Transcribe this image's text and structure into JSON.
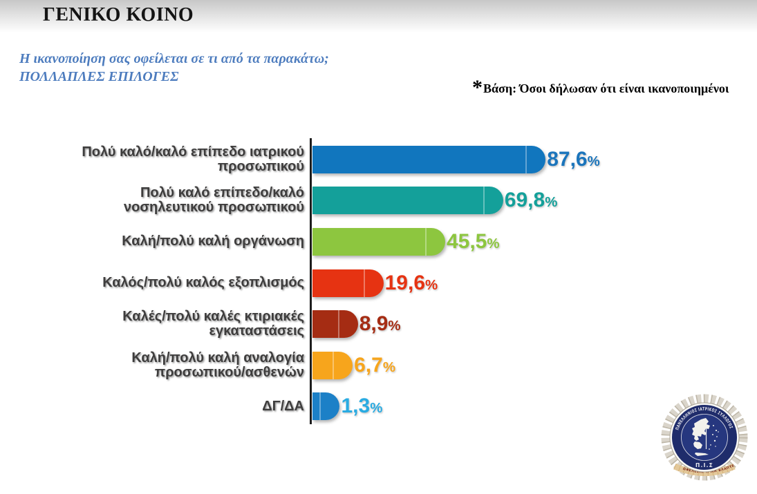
{
  "header": {
    "title": "ΓΕΝΙΚΟ ΚΟΙΝΟ"
  },
  "question": {
    "line1": "Η ικανοποίηση σας οφείλεται σε τι από τα παρακάτω;",
    "line2": "ΠΟΛΛΑΠΛΕΣ ΕΠΙΛΟΓΕΣ"
  },
  "note": {
    "asterisk": "*",
    "text": "Βάση: Όσοι δήλωσαν ότι είναι ικανοποιημένοι"
  },
  "chart_data": {
    "type": "bar",
    "orientation": "horizontal",
    "title": "",
    "xlabel": "",
    "ylabel": "",
    "xlim": [
      0,
      100
    ],
    "grid": false,
    "legend": "none",
    "value_label_position": "outside-end",
    "categories": [
      "Πολύ καλό/καλό επίπεδο ιατρικού προσωπικού",
      "Πολύ καλό επίπεδο/καλό νοσηλευτικού προσωπικού",
      "Καλή/πολύ καλή οργάνωση",
      "Καλός/πολύ καλός εξοπλισμός",
      "Καλές/πολύ καλές κτιριακές εγκαταστάσεις",
      "Καλή/πολύ καλή αναλογία προσωπικού/ασθενών",
      "ΔΓ/ΔΑ"
    ],
    "category_lines": [
      [
        "Πολύ καλό/καλό επίπεδο ιατρικού",
        "προσωπικού"
      ],
      [
        "Πολύ καλό επίπεδο/καλό",
        "νοσηλευτικού προσωπικού"
      ],
      [
        "Καλή/πολύ καλή οργάνωση"
      ],
      [
        "Καλός/πολύ καλός εξοπλισμός"
      ],
      [
        "Καλές/πολύ καλές κτιριακές",
        "εγκαταστάσεις"
      ],
      [
        "Καλή/πολύ καλή αναλογία",
        "προσωπικού/ασθενών"
      ],
      [
        "ΔΓ/ΔΑ"
      ]
    ],
    "values": [
      87.6,
      69.8,
      45.5,
      19.6,
      8.9,
      6.7,
      1.3
    ],
    "value_labels": [
      "87,6%",
      "69,8%",
      "45,5%",
      "19,6%",
      "8,9%",
      "6,7%",
      "1,3%"
    ],
    "bar_colors": [
      "#1176be",
      "#14a09a",
      "#8dc63f",
      "#e63312",
      "#a52c13",
      "#f7a51c",
      "#1c80c7"
    ],
    "value_label_colors": [
      "#1b75bc",
      "#14a09a",
      "#8dc63f",
      "#e63312",
      "#a52c13",
      "#f7a51c",
      "#29abe2"
    ]
  },
  "logo": {
    "organization": "panhellenic-medical-association",
    "ring_text": "ΠΑΝΕΛΛΗΝΙΟΣ ΙΑΤΡΙΚΟΣ ΣΥΛΛΟΓΟΣ",
    "abbreviation": "Π.Ι.Σ",
    "motto": "ΩΦΕΛΕΕΙΝ Ή ΜΗ ΒΛΑΠΤΕΙΝ",
    "navy_color": "#1f2c6b",
    "silver_color": "#d6d1c7"
  }
}
